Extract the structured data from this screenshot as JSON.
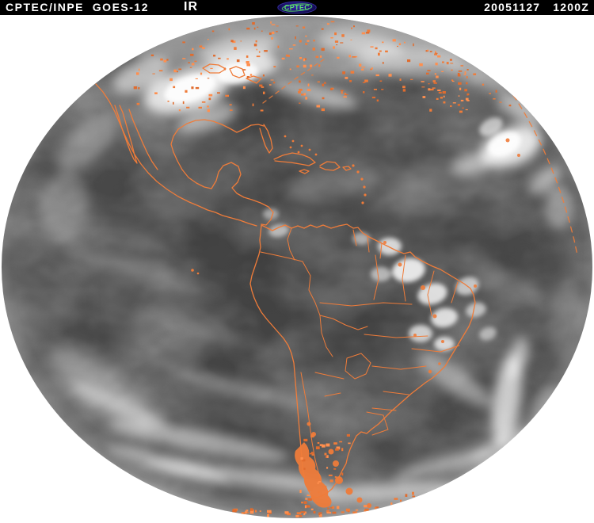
{
  "header": {
    "title": "CPTEC/INPE  GOES-12",
    "channel": "IR",
    "logo_text": "CPTEC",
    "date": "20051127",
    "time": "1200Z"
  },
  "image": {
    "kind": "GOES-12 infrared full-disk satellite view of the Americas",
    "overlay": "coastlines and political borders"
  },
  "colors": {
    "header_bg": "#000000",
    "header_text": "#ffffff",
    "page_bg": "#ffffff",
    "overlay_orange": "#ef7c3a",
    "overlay_orange_light": "#ff8f4e",
    "overlay_orange_dark": "#e06c2e",
    "disk_gray": "#434343",
    "cloud_white": "#ffffff",
    "logo_green": "#5ce06e",
    "logo_blue": "#2a1e8c"
  }
}
